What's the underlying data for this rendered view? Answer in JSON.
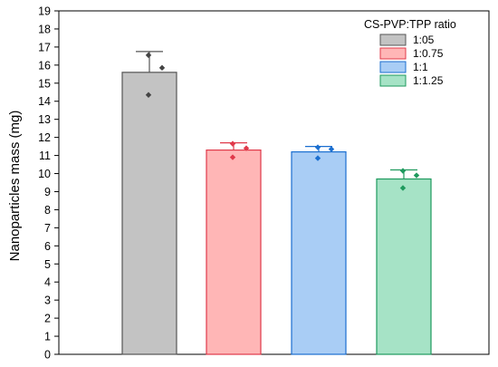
{
  "chart_data": {
    "type": "bar",
    "ylabel": "Nanoparticles mass (mg)",
    "xlabel": "",
    "ylim": [
      0,
      19
    ],
    "yticks": [
      0,
      1,
      2,
      3,
      4,
      5,
      6,
      7,
      8,
      9,
      10,
      11,
      12,
      13,
      14,
      15,
      16,
      17,
      18,
      19
    ],
    "legend_title": "CS-PVP:TPP ratio",
    "legend_position": "top-right",
    "grid": false,
    "series": [
      {
        "name": "1:05",
        "value": 15.6,
        "error": 1.15,
        "points": [
          16.55,
          15.85,
          14.35
        ],
        "fill": "#c3c3c3",
        "stroke": "#555555",
        "point_color": "#444444"
      },
      {
        "name": "1:0.75",
        "value": 11.3,
        "error": 0.4,
        "points": [
          11.65,
          11.4,
          10.9
        ],
        "fill": "#ffb6b6",
        "stroke": "#e0394a",
        "point_color": "#e0394a"
      },
      {
        "name": "1:1",
        "value": 11.2,
        "error": 0.3,
        "points": [
          11.45,
          11.35,
          10.85
        ],
        "fill": "#a9cdf5",
        "stroke": "#1b6fd0",
        "point_color": "#1b6fd0"
      },
      {
        "name": "1:1.25",
        "value": 9.7,
        "error": 0.5,
        "points": [
          10.15,
          9.9,
          9.2
        ],
        "fill": "#a6e3c6",
        "stroke": "#1f9a5e",
        "point_color": "#1f9a5e"
      }
    ]
  }
}
